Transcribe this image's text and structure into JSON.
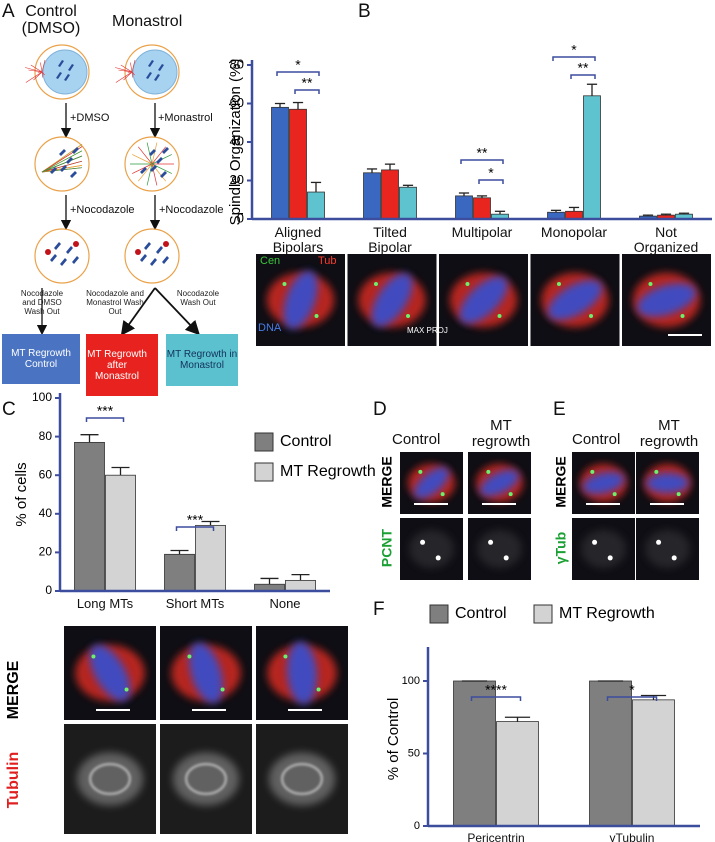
{
  "panel_labels": [
    "A",
    "B",
    "C",
    "D",
    "E",
    "F"
  ],
  "panel_a": {
    "left_title": "Control (DMSO)",
    "right_title": "Monastrol",
    "steps": [
      "+DMSO",
      "+Monastrol",
      "+Nocodazole",
      "+Nocodazole"
    ],
    "washouts": [
      "Nocodazole and DMSO Wash Out",
      "Nocodazole and Monastrol Wash Out",
      "Nocodazole Wash Out"
    ],
    "conditions": [
      "MT Regrowth Control",
      "MT Regrowth after Monastrol",
      "MT Regrowth in Monastrol"
    ]
  },
  "panel_b_images": {
    "labels": [
      "Cen",
      "Tub",
      "DNA",
      "MAX PROJ"
    ]
  },
  "panel_c_images": {
    "rows": [
      "MERGE",
      "Tubulin"
    ]
  },
  "panel_d": {
    "columns": [
      "Control",
      "MT regrowth"
    ],
    "rows": [
      "MERGE",
      "PCNT"
    ]
  },
  "panel_e": {
    "columns": [
      "Control",
      "MT regrowth"
    ],
    "rows": [
      "MERGE",
      "γTub"
    ]
  },
  "chart_data": [
    {
      "type": "bar",
      "y_label": "Spindle Organization (%)",
      "categories": [
        "Aligned Bipolars",
        "Tilted Bipolar",
        "Multipolar",
        "Monopolar",
        "Not Organized"
      ],
      "series": [
        {
          "color": "#3a68c0",
          "values": [
            58,
            24,
            12,
            3.5,
            1.5
          ],
          "errors": [
            2,
            2,
            1.5,
            1,
            0.5
          ]
        },
        {
          "color": "#e8251f",
          "values": [
            57,
            25.5,
            11,
            4,
            2
          ],
          "errors": [
            3.5,
            3,
            1,
            2,
            0.5
          ]
        },
        {
          "color": "#5fc3cf",
          "values": [
            14,
            16.5,
            2.5,
            64,
            2.5
          ],
          "errors": [
            5,
            1,
            1.5,
            6,
            0.5
          ]
        }
      ],
      "ylim": [
        0,
        80
      ],
      "yticks": [
        0,
        20,
        40,
        60,
        80
      ],
      "annotations": [
        "*",
        "**",
        "**",
        "*",
        "*",
        "**"
      ]
    },
    {
      "type": "bar",
      "y_label": "% of cells",
      "categories": [
        "Long MTs",
        "Short MTs",
        "None"
      ],
      "series": [
        {
          "name": "Control",
          "color": "#7f7f7f",
          "values": [
            77,
            19,
            3.5
          ],
          "errors": [
            4,
            2,
            3
          ]
        },
        {
          "name": "MT Regrowth",
          "color": "#d3d3d3",
          "values": [
            60,
            34,
            5.5
          ],
          "errors": [
            4,
            2,
            3
          ]
        }
      ],
      "ylim": [
        0,
        100
      ],
      "yticks": [
        0,
        20,
        40,
        60,
        80,
        100
      ],
      "annotations": [
        "***",
        "***"
      ]
    },
    {
      "type": "bar",
      "y_label": "% of Control",
      "categories": [
        "Pericentrin",
        "γTubulin"
      ],
      "series": [
        {
          "name": "Control",
          "color": "#7f7f7f",
          "values": [
            100,
            100
          ],
          "errors": [
            0,
            0
          ]
        },
        {
          "name": "MT Regrowth",
          "color": "#d3d3d3",
          "values": [
            72,
            87
          ],
          "errors": [
            3,
            3
          ]
        }
      ],
      "ylim": [
        0,
        120
      ],
      "yticks": [
        0,
        50,
        100
      ],
      "annotations": [
        "****",
        "*"
      ]
    }
  ]
}
